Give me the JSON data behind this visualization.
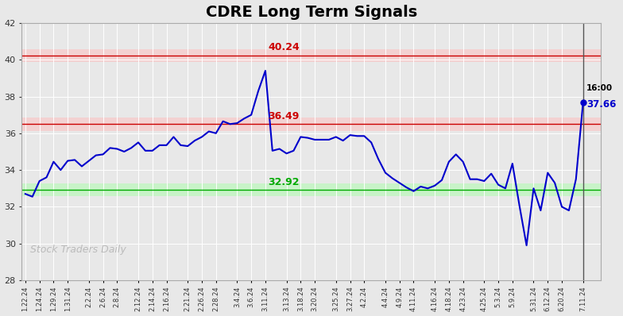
{
  "title": "CDRE Long Term Signals",
  "title_fontsize": 14,
  "title_fontweight": "bold",
  "fig_bg": "#e8e8e8",
  "plot_bg": "#e8e8e8",
  "line_color": "#0000cc",
  "line_width": 1.5,
  "hline_upper": 40.24,
  "hline_middle": 36.49,
  "hline_lower": 32.92,
  "hline_upper_color": "#cc0000",
  "hline_middle_color": "#cc0000",
  "hline_lower_color": "#00aa00",
  "annotation_time": "16:00",
  "annotation_price": "37.66",
  "watermark": "Stock Traders Daily",
  "ylim": [
    28,
    42
  ],
  "yticks": [
    28,
    30,
    32,
    34,
    36,
    38,
    40,
    42
  ],
  "x_labels": [
    "1.22.24",
    "1.24.24",
    "1.29.24",
    "1.31.24",
    "2.2.24",
    "2.6.24",
    "2.8.24",
    "2.12.24",
    "2.14.24",
    "2.16.24",
    "2.21.24",
    "2.26.24",
    "2.28.24",
    "3.4.24",
    "3.6.24",
    "3.11.24",
    "3.13.24",
    "3.18.24",
    "3.20.24",
    "3.25.24",
    "3.27.24",
    "4.2.24",
    "4.4.24",
    "4.9.24",
    "4.11.24",
    "4.16.24",
    "4.18.24",
    "4.23.24",
    "4.25.24",
    "5.3.24",
    "5.9.24",
    "5.31.24",
    "6.12.24",
    "6.20.24",
    "7.11.24"
  ],
  "y_values": [
    32.7,
    32.55,
    33.4,
    33.6,
    34.45,
    34.0,
    34.5,
    34.55,
    34.2,
    34.5,
    34.8,
    34.85,
    35.2,
    35.15,
    35.0,
    35.2,
    35.5,
    35.05,
    35.05,
    35.35,
    35.35,
    35.8,
    35.35,
    35.3,
    35.6,
    35.8,
    36.1,
    36.0,
    36.65,
    36.5,
    36.55,
    36.8,
    37.0,
    38.3,
    39.4,
    35.05,
    35.15,
    34.9,
    35.05,
    35.8,
    35.75,
    35.65,
    35.65,
    35.65,
    35.8,
    35.6,
    35.9,
    35.85,
    35.85,
    35.5,
    34.6,
    33.85,
    33.55,
    33.3,
    33.05,
    32.85,
    33.1,
    33.0,
    33.15,
    33.45,
    34.45,
    34.85,
    34.45,
    33.5,
    33.5,
    33.4,
    33.8,
    33.2,
    33.0,
    34.35,
    32.05,
    29.9,
    33.0,
    31.8,
    33.85,
    33.3,
    32.0,
    31.8,
    33.5,
    37.66
  ]
}
